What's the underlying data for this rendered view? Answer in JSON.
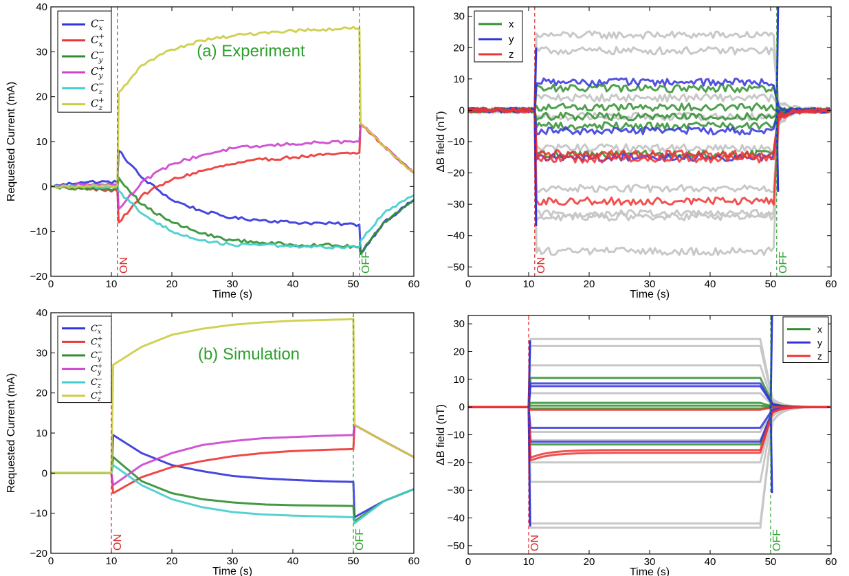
{
  "chart_data": [
    {
      "id": "a_current",
      "type": "line",
      "title": "(a) Experiment",
      "title_color": "#2ca02c",
      "xlabel": "Time (s)",
      "ylabel": "Requested Current (mA)",
      "xlim": [
        0,
        60
      ],
      "ylim": [
        -20,
        40
      ],
      "xticks": [
        "0",
        "10",
        "20",
        "30",
        "40",
        "50",
        "60"
      ],
      "yticks": [
        "−20",
        "−10",
        "0",
        "10",
        "20",
        "30",
        "40"
      ],
      "legend_position": "top-left",
      "markers": [
        {
          "x": 11,
          "label": "ON",
          "color": "#d62728"
        },
        {
          "x": 51,
          "label": "OFF",
          "color": "#2ca02c"
        }
      ],
      "series": [
        {
          "name": "C_x^-",
          "color": "#3333dd",
          "points": [
            [
              0,
              0
            ],
            [
              5,
              1
            ],
            [
              11,
              1
            ],
            [
              11.2,
              8
            ],
            [
              15,
              2
            ],
            [
              20,
              -3
            ],
            [
              25,
              -5.5
            ],
            [
              30,
              -7
            ],
            [
              35,
              -7.5
            ],
            [
              40,
              -8
            ],
            [
              45,
              -8.2
            ],
            [
              51,
              -8.5
            ],
            [
              51.2,
              -15
            ],
            [
              55,
              -8
            ],
            [
              60,
              -3
            ]
          ]
        },
        {
          "name": "C_x^+",
          "color": "#ee3333",
          "points": [
            [
              0,
              0
            ],
            [
              5,
              -0.5
            ],
            [
              11,
              -1
            ],
            [
              11.2,
              -8
            ],
            [
              15,
              -2
            ],
            [
              20,
              1.5
            ],
            [
              25,
              3.5
            ],
            [
              30,
              5
            ],
            [
              35,
              6
            ],
            [
              40,
              6.5
            ],
            [
              45,
              7
            ],
            [
              51,
              7.5
            ],
            [
              51.2,
              14
            ],
            [
              55,
              9
            ],
            [
              60,
              3
            ]
          ]
        },
        {
          "name": "C_y^-",
          "color": "#2f8f2f",
          "points": [
            [
              0,
              0
            ],
            [
              5,
              -0.5
            ],
            [
              11,
              -0.5
            ],
            [
              11.2,
              2
            ],
            [
              15,
              -4
            ],
            [
              20,
              -8
            ],
            [
              25,
              -10.5
            ],
            [
              30,
              -12
            ],
            [
              35,
              -12.5
            ],
            [
              40,
              -13
            ],
            [
              45,
              -13
            ],
            [
              51,
              -13.5
            ],
            [
              51.2,
              -15
            ],
            [
              55,
              -8
            ],
            [
              60,
              -3
            ]
          ]
        },
        {
          "name": "C_y^+",
          "color": "#cc44cc",
          "points": [
            [
              0,
              0
            ],
            [
              5,
              0.5
            ],
            [
              11,
              0.5
            ],
            [
              11.2,
              -5
            ],
            [
              15,
              1
            ],
            [
              20,
              5
            ],
            [
              25,
              7
            ],
            [
              30,
              8.5
            ],
            [
              35,
              9
            ],
            [
              40,
              9.5
            ],
            [
              45,
              9.8
            ],
            [
              51,
              10
            ],
            [
              51.2,
              14
            ],
            [
              55,
              9
            ],
            [
              60,
              3
            ]
          ]
        },
        {
          "name": "C_z^-",
          "color": "#44cccc",
          "points": [
            [
              0,
              0
            ],
            [
              5,
              0
            ],
            [
              11,
              0
            ],
            [
              11.2,
              -1
            ],
            [
              15,
              -6
            ],
            [
              20,
              -10
            ],
            [
              25,
              -12
            ],
            [
              30,
              -13
            ],
            [
              35,
              -13
            ],
            [
              40,
              -13.3
            ],
            [
              45,
              -13.5
            ],
            [
              51,
              -13.5
            ],
            [
              51.2,
              -12
            ],
            [
              55,
              -6
            ],
            [
              60,
              -2
            ]
          ]
        },
        {
          "name": "C_z^+",
          "color": "#cccc44",
          "points": [
            [
              0,
              0
            ],
            [
              5,
              0
            ],
            [
              11,
              0
            ],
            [
              11.2,
              21
            ],
            [
              15,
              27
            ],
            [
              20,
              30.5
            ],
            [
              25,
              32.5
            ],
            [
              30,
              33.5
            ],
            [
              35,
              34.3
            ],
            [
              40,
              34.7
            ],
            [
              45,
              35
            ],
            [
              51,
              35.3
            ],
            [
              51.2,
              14
            ],
            [
              55,
              9
            ],
            [
              60,
              3
            ]
          ]
        }
      ]
    },
    {
      "id": "a_field",
      "type": "line",
      "xlabel": "Time (s)",
      "ylabel": "ΔB field (nT)",
      "xlim": [
        0,
        60
      ],
      "ylim": [
        -53,
        33
      ],
      "xticks": [
        "0",
        "10",
        "20",
        "30",
        "40",
        "50",
        "60"
      ],
      "yticks": [
        "−50",
        "−40",
        "−30",
        "−20",
        "−10",
        "0",
        "10",
        "20",
        "30"
      ],
      "ytick_values": [
        -50,
        -40,
        -30,
        -20,
        -10,
        0,
        10,
        20,
        30
      ],
      "legend_position": "top-left",
      "markers": [
        {
          "x": 11,
          "label": "ON",
          "color": "#d62728"
        },
        {
          "x": 51,
          "label": "OFF",
          "color": "#2ca02c"
        }
      ],
      "series": [
        {
          "name": "x",
          "color": "#2f8f2f"
        },
        {
          "name": "y",
          "color": "#3333dd"
        },
        {
          "name": "z",
          "color": "#ee3333"
        }
      ],
      "levels": [
        {
          "color": "#c8c8c8",
          "values": [
            24,
            19,
            4,
            -2,
            -12,
            -25,
            -33,
            -34,
            -45
          ]
        },
        {
          "color": "#2f8f2f",
          "values": [
            7,
            1,
            -2,
            -5,
            -14
          ]
        },
        {
          "color": "#3333dd",
          "values": [
            9,
            -6.5,
            -15
          ]
        },
        {
          "color": "#ee3333",
          "values": [
            -14,
            -15.5,
            -29
          ]
        }
      ],
      "spikes": [
        {
          "x": 11,
          "color": "#3333dd",
          "values": [
            20,
            -37
          ]
        },
        {
          "x": 51,
          "color": "#3333dd",
          "values": [
            33,
            -26
          ]
        }
      ],
      "noisy": true
    },
    {
      "id": "b_current",
      "type": "line",
      "title": "(b) Simulation",
      "title_color": "#2ca02c",
      "xlabel": "Time (s)",
      "ylabel": "Requested Current (mA)",
      "xlim": [
        0,
        60
      ],
      "ylim": [
        -20,
        40
      ],
      "xticks": [
        "0",
        "10",
        "20",
        "30",
        "40",
        "50",
        "60"
      ],
      "yticks": [
        "−20",
        "−10",
        "0",
        "10",
        "20",
        "30",
        "40"
      ],
      "legend_position": "top-left",
      "markers": [
        {
          "x": 10,
          "label": "ON",
          "color": "#d62728"
        },
        {
          "x": 50,
          "label": "OFF",
          "color": "#2ca02c"
        }
      ],
      "series": [
        {
          "name": "C_x^-",
          "color": "#3333dd",
          "points": [
            [
              0,
              0
            ],
            [
              10,
              0
            ],
            [
              10.3,
              9.5
            ],
            [
              15,
              5
            ],
            [
              20,
              2
            ],
            [
              25,
              0.5
            ],
            [
              30,
              -0.7
            ],
            [
              35,
              -1.3
            ],
            [
              40,
              -1.7
            ],
            [
              45,
              -2
            ],
            [
              50,
              -2.2
            ],
            [
              50.2,
              -11
            ],
            [
              55,
              -7
            ],
            [
              60,
              -4
            ]
          ]
        },
        {
          "name": "C_x^+",
          "color": "#ee3333",
          "points": [
            [
              0,
              0
            ],
            [
              10,
              0
            ],
            [
              10.3,
              -5
            ],
            [
              15,
              -1
            ],
            [
              20,
              1.5
            ],
            [
              25,
              3
            ],
            [
              30,
              4.2
            ],
            [
              35,
              5
            ],
            [
              40,
              5.5
            ],
            [
              45,
              5.8
            ],
            [
              50,
              6
            ],
            [
              50.2,
              12
            ],
            [
              55,
              8
            ],
            [
              60,
              4
            ]
          ]
        },
        {
          "name": "C_y^-",
          "color": "#2f8f2f",
          "points": [
            [
              0,
              0
            ],
            [
              10,
              0
            ],
            [
              10.3,
              4
            ],
            [
              15,
              -2
            ],
            [
              20,
              -5
            ],
            [
              25,
              -6.5
            ],
            [
              30,
              -7.3
            ],
            [
              35,
              -7.8
            ],
            [
              40,
              -8
            ],
            [
              45,
              -8.1
            ],
            [
              50,
              -8.2
            ],
            [
              50.2,
              -12
            ],
            [
              55,
              -7
            ],
            [
              60,
              -4
            ]
          ]
        },
        {
          "name": "C_y^+",
          "color": "#cc44cc",
          "points": [
            [
              0,
              0
            ],
            [
              10,
              0
            ],
            [
              10.3,
              -3
            ],
            [
              15,
              2
            ],
            [
              20,
              5
            ],
            [
              25,
              7
            ],
            [
              30,
              8
            ],
            [
              35,
              8.7
            ],
            [
              40,
              9
            ],
            [
              45,
              9.3
            ],
            [
              50,
              9.5
            ],
            [
              50.2,
              12
            ],
            [
              55,
              8
            ],
            [
              60,
              4
            ]
          ]
        },
        {
          "name": "C_z^-",
          "color": "#44cccc",
          "points": [
            [
              0,
              0
            ],
            [
              10,
              0
            ],
            [
              10.3,
              2
            ],
            [
              15,
              -3
            ],
            [
              20,
              -6.5
            ],
            [
              25,
              -8.5
            ],
            [
              30,
              -9.7
            ],
            [
              35,
              -10.3
            ],
            [
              40,
              -10.6
            ],
            [
              45,
              -10.8
            ],
            [
              50,
              -11
            ],
            [
              50.2,
              -12.5
            ],
            [
              55,
              -7
            ],
            [
              60,
              -4
            ]
          ]
        },
        {
          "name": "C_z^+",
          "color": "#cccc44",
          "points": [
            [
              0,
              0
            ],
            [
              10,
              0
            ],
            [
              10.3,
              27
            ],
            [
              15,
              31.5
            ],
            [
              20,
              34.5
            ],
            [
              25,
              36
            ],
            [
              30,
              37
            ],
            [
              35,
              37.6
            ],
            [
              40,
              38
            ],
            [
              45,
              38.2
            ],
            [
              50,
              38.4
            ],
            [
              50.2,
              12
            ],
            [
              55,
              8
            ],
            [
              60,
              4
            ]
          ]
        }
      ]
    },
    {
      "id": "b_field",
      "type": "line",
      "xlabel": "Time (s)",
      "ylabel": "ΔB field (nT)",
      "xlim": [
        0,
        60
      ],
      "ylim": [
        -53,
        33
      ],
      "xticks": [
        "0",
        "10",
        "20",
        "30",
        "40",
        "50",
        "60"
      ],
      "yticks": [
        "−50",
        "−40",
        "−30",
        "−20",
        "−10",
        "0",
        "10",
        "20",
        "30"
      ],
      "ytick_values": [
        -50,
        -40,
        -30,
        -20,
        -10,
        0,
        10,
        20,
        30
      ],
      "legend_position": "top-right",
      "markers": [
        {
          "x": 10,
          "label": "ON",
          "color": "#d62728"
        },
        {
          "x": 50,
          "label": "OFF",
          "color": "#2ca02c"
        }
      ],
      "series": [
        {
          "name": "x",
          "color": "#2f8f2f"
        },
        {
          "name": "y",
          "color": "#3333dd"
        },
        {
          "name": "z",
          "color": "#ee3333"
        }
      ],
      "levels": [
        {
          "color": "#c8c8c8",
          "values": [
            24.5,
            22,
            15,
            5,
            -9,
            -12,
            -20,
            -27,
            -42,
            -43.5
          ]
        },
        {
          "color": "#2f8f2f",
          "values": [
            10.5,
            1.5,
            0.5,
            -0.5,
            -13.5
          ]
        },
        {
          "color": "#3333dd",
          "values": [
            8.5,
            7.5,
            -7.5,
            -12.5
          ]
        },
        {
          "color": "#ee3333",
          "values": [
            -1,
            -15.5,
            -16.5
          ]
        }
      ],
      "spikes": [
        {
          "x": 10,
          "color": "#3333dd",
          "values": [
            24,
            -43
          ]
        },
        {
          "x": 50,
          "color": "#3333dd",
          "values": [
            33,
            -31
          ]
        }
      ],
      "noisy": false
    }
  ]
}
